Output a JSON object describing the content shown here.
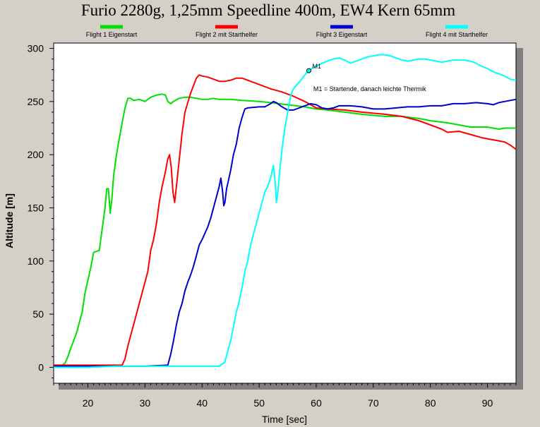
{
  "chart_data": {
    "type": "line",
    "title": "Furio 2280g, 1,25mm Speedline 400m, EW4 Kern 65mm",
    "xlabel": "Time [sec]",
    "ylabel": "Altitude [m]",
    "xlim": [
      14,
      95
    ],
    "ylim": [
      -15,
      305
    ],
    "xticks": [
      20,
      30,
      40,
      50,
      60,
      70,
      80,
      90
    ],
    "yticks": [
      0,
      50,
      100,
      150,
      200,
      250,
      300
    ],
    "grid": false,
    "legend_position": "top",
    "series": [
      {
        "name": "Flight 1 Eigenstart",
        "color": "#00e000",
        "points": [
          [
            14,
            2
          ],
          [
            15.5,
            2
          ],
          [
            16,
            4
          ],
          [
            16.5,
            10
          ],
          [
            17,
            18
          ],
          [
            18,
            32
          ],
          [
            19,
            52
          ],
          [
            19.5,
            70
          ],
          [
            20.5,
            94
          ],
          [
            21,
            108
          ],
          [
            22,
            110
          ],
          [
            22.5,
            130
          ],
          [
            23,
            150
          ],
          [
            23.3,
            168
          ],
          [
            23.6,
            168
          ],
          [
            23.9,
            145
          ],
          [
            24.2,
            158
          ],
          [
            24.5,
            180
          ],
          [
            25,
            200
          ],
          [
            25.5,
            215
          ],
          [
            26,
            230
          ],
          [
            26.5,
            244
          ],
          [
            27,
            253
          ],
          [
            27.5,
            253
          ],
          [
            28,
            251
          ],
          [
            29,
            252
          ],
          [
            30,
            250
          ],
          [
            31,
            254
          ],
          [
            32,
            256
          ],
          [
            33,
            257
          ],
          [
            33.6,
            256
          ],
          [
            34,
            250
          ],
          [
            34.5,
            248
          ],
          [
            35,
            250
          ],
          [
            36,
            253
          ],
          [
            37,
            254
          ],
          [
            38,
            254
          ],
          [
            39,
            253
          ],
          [
            40,
            252
          ],
          [
            41,
            252
          ],
          [
            42,
            253
          ],
          [
            43,
            252
          ],
          [
            45,
            252
          ],
          [
            47,
            251
          ],
          [
            50,
            250
          ],
          [
            52,
            249
          ],
          [
            55,
            247
          ],
          [
            58,
            245
          ],
          [
            60,
            243
          ],
          [
            62,
            242
          ],
          [
            65,
            240
          ],
          [
            68,
            238
          ],
          [
            70,
            237
          ],
          [
            72,
            236
          ],
          [
            75,
            236
          ],
          [
            78,
            234
          ],
          [
            80,
            232
          ],
          [
            83,
            230
          ],
          [
            85,
            228
          ],
          [
            87,
            226
          ],
          [
            90,
            226
          ],
          [
            92,
            224
          ],
          [
            93,
            225
          ],
          [
            95,
            225
          ]
        ]
      },
      {
        "name": "Flight 2 mit Starthelfer",
        "color": "#ff0000",
        "points": [
          [
            14,
            2
          ],
          [
            16,
            2
          ],
          [
            18,
            2
          ],
          [
            20,
            2
          ],
          [
            22,
            2
          ],
          [
            25,
            2
          ],
          [
            26,
            2
          ],
          [
            26.5,
            8
          ],
          [
            27,
            20
          ],
          [
            28,
            40
          ],
          [
            29,
            60
          ],
          [
            30,
            80
          ],
          [
            30.5,
            90
          ],
          [
            31,
            110
          ],
          [
            31.5,
            120
          ],
          [
            32,
            135
          ],
          [
            32.5,
            155
          ],
          [
            33,
            170
          ],
          [
            33.5,
            182
          ],
          [
            34,
            196
          ],
          [
            34.3,
            200
          ],
          [
            34.6,
            188
          ],
          [
            34.9,
            165
          ],
          [
            35.2,
            155
          ],
          [
            35.5,
            170
          ],
          [
            36,
            195
          ],
          [
            36.5,
            220
          ],
          [
            37,
            240
          ],
          [
            38,
            258
          ],
          [
            39,
            272
          ],
          [
            39.5,
            275
          ],
          [
            40,
            274
          ],
          [
            41,
            273
          ],
          [
            42,
            271
          ],
          [
            43,
            269
          ],
          [
            44,
            269
          ],
          [
            45,
            270
          ],
          [
            46,
            272
          ],
          [
            47,
            272
          ],
          [
            48,
            270
          ],
          [
            50,
            266
          ],
          [
            52,
            262
          ],
          [
            54,
            259
          ],
          [
            56,
            255
          ],
          [
            58,
            250
          ],
          [
            60,
            244
          ],
          [
            62,
            243
          ],
          [
            65,
            242
          ],
          [
            68,
            240
          ],
          [
            70,
            239
          ],
          [
            72,
            238
          ],
          [
            75,
            236
          ],
          [
            78,
            232
          ],
          [
            80,
            228
          ],
          [
            82,
            224
          ],
          [
            83,
            221
          ],
          [
            85,
            222
          ],
          [
            87,
            219
          ],
          [
            89,
            216
          ],
          [
            91,
            214
          ],
          [
            93,
            212
          ],
          [
            94,
            209
          ],
          [
            95,
            205
          ]
        ]
      },
      {
        "name": "Flight 3 Eigenstart",
        "color": "#0000cc",
        "points": [
          [
            14,
            1
          ],
          [
            20,
            1
          ],
          [
            25,
            1
          ],
          [
            30,
            1
          ],
          [
            34,
            2
          ],
          [
            34.5,
            12
          ],
          [
            35,
            25
          ],
          [
            35.5,
            40
          ],
          [
            36,
            52
          ],
          [
            36.5,
            60
          ],
          [
            37,
            72
          ],
          [
            37.5,
            80
          ],
          [
            38,
            87
          ],
          [
            38.5,
            95
          ],
          [
            39,
            105
          ],
          [
            39.5,
            115
          ],
          [
            40,
            120
          ],
          [
            41,
            132
          ],
          [
            41.5,
            140
          ],
          [
            42,
            150
          ],
          [
            42.5,
            160
          ],
          [
            43,
            170
          ],
          [
            43.3,
            178
          ],
          [
            43.6,
            165
          ],
          [
            43.8,
            152
          ],
          [
            44,
            155
          ],
          [
            44.3,
            168
          ],
          [
            45,
            185
          ],
          [
            45.5,
            200
          ],
          [
            46,
            210
          ],
          [
            46.5,
            225
          ],
          [
            47,
            235
          ],
          [
            47.5,
            243
          ],
          [
            48,
            244
          ],
          [
            50,
            245
          ],
          [
            51,
            245
          ],
          [
            52,
            248
          ],
          [
            52.5,
            250
          ],
          [
            53,
            249
          ],
          [
            54,
            245
          ],
          [
            55,
            242
          ],
          [
            56,
            242
          ],
          [
            58,
            246
          ],
          [
            59,
            248
          ],
          [
            60,
            247
          ],
          [
            61,
            244
          ],
          [
            62,
            243
          ],
          [
            63,
            244
          ],
          [
            64,
            246
          ],
          [
            66,
            246
          ],
          [
            68,
            245
          ],
          [
            70,
            243
          ],
          [
            72,
            243
          ],
          [
            74,
            244
          ],
          [
            76,
            245
          ],
          [
            78,
            245
          ],
          [
            80,
            246
          ],
          [
            82,
            246
          ],
          [
            84,
            248
          ],
          [
            86,
            248
          ],
          [
            88,
            249
          ],
          [
            90,
            248
          ],
          [
            91,
            247
          ],
          [
            92,
            249
          ],
          [
            93,
            250
          ],
          [
            95,
            252
          ]
        ]
      },
      {
        "name": "Flight 4 mit Starthelfer",
        "color": "#00ffff",
        "points": [
          [
            14,
            0
          ],
          [
            20,
            0
          ],
          [
            25,
            1
          ],
          [
            28,
            1
          ],
          [
            30,
            1
          ],
          [
            35,
            1
          ],
          [
            40,
            1
          ],
          [
            43,
            1
          ],
          [
            44,
            5
          ],
          [
            44.5,
            15
          ],
          [
            45,
            25
          ],
          [
            45.5,
            38
          ],
          [
            46,
            52
          ],
          [
            46.5,
            62
          ],
          [
            47,
            75
          ],
          [
            47.5,
            90
          ],
          [
            48,
            100
          ],
          [
            48.5,
            115
          ],
          [
            49,
            125
          ],
          [
            49.5,
            135
          ],
          [
            50,
            145
          ],
          [
            50.5,
            155
          ],
          [
            51,
            165
          ],
          [
            51.5,
            170
          ],
          [
            52,
            178
          ],
          [
            52.5,
            190
          ],
          [
            52.8,
            175
          ],
          [
            53,
            155
          ],
          [
            53.3,
            165
          ],
          [
            53.6,
            185
          ],
          [
            54,
            205
          ],
          [
            54.5,
            225
          ],
          [
            55,
            240
          ],
          [
            55.5,
            255
          ],
          [
            56,
            262
          ],
          [
            57,
            268
          ],
          [
            58,
            275
          ],
          [
            58.7,
            279
          ],
          [
            59.5,
            282
          ],
          [
            60,
            283
          ],
          [
            61,
            286
          ],
          [
            62,
            288
          ],
          [
            63,
            290
          ],
          [
            64,
            291
          ],
          [
            65,
            289
          ],
          [
            66,
            286
          ],
          [
            67,
            288
          ],
          [
            68,
            290
          ],
          [
            69,
            292
          ],
          [
            70,
            293
          ],
          [
            71,
            294
          ],
          [
            72,
            294
          ],
          [
            73,
            293
          ],
          [
            74,
            291
          ],
          [
            75,
            289
          ],
          [
            76,
            288
          ],
          [
            77,
            289
          ],
          [
            78,
            290
          ],
          [
            79,
            290
          ],
          [
            80,
            289
          ],
          [
            81,
            288
          ],
          [
            82,
            287
          ],
          [
            83,
            288
          ],
          [
            84,
            289
          ],
          [
            86,
            289
          ],
          [
            87,
            288
          ],
          [
            88,
            286
          ],
          [
            89,
            283
          ],
          [
            90,
            281
          ],
          [
            91,
            278
          ],
          [
            92,
            276
          ],
          [
            93,
            274
          ],
          [
            94,
            271
          ],
          [
            95,
            270
          ]
        ]
      }
    ],
    "annotations": [
      {
        "label": "M1",
        "x": 58.7,
        "y": 279
      },
      {
        "label": "M1 = Startende, danach leichte Thermik",
        "x": 59.5,
        "y": 262
      }
    ]
  }
}
